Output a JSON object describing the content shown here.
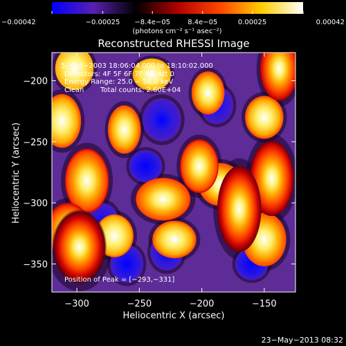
{
  "chart_data": {
    "type": "heatmap",
    "title": "Reconstructed RHESSI Image",
    "xlabel": "Heliocentric X (arcsec)",
    "ylabel": "Heliocentric Y (arcsec)",
    "xlim": [
      -320,
      -125
    ],
    "ylim": [
      -373,
      -177
    ],
    "x_ticks": [
      -300,
      -250,
      -200,
      -150
    ],
    "x_tick_labels": [
      "−300",
      "−250",
      "−200",
      "−150"
    ],
    "y_ticks": [
      -200,
      -250,
      -300,
      -350
    ],
    "y_tick_labels": [
      "−200",
      "−250",
      "−300",
      "−350"
    ],
    "colorbar": {
      "range": [
        -0.00042,
        0.00042
      ],
      "ticks": [
        -0.00042,
        -0.00025,
        -8.4e-05,
        8.4e-05,
        0.00025,
        0.00042
      ],
      "tick_labels": [
        "−0.00042",
        "−0.00025",
        "−8.4e−05",
        "8.4e−05",
        "0.00025",
        "0.00042"
      ],
      "unit_label": "(photons cm⁻² s⁻¹ asec⁻²)",
      "colormap": [
        "#0000ff",
        "#5a1fb0",
        "#000000",
        "#b00000",
        "#ff4400",
        "#ffcc00",
        "#ffffff"
      ]
    },
    "annotations": {
      "time_range": "5−Oct−2003 18:06:04.000 to 18:10:02.000",
      "detectors": "Detectors: 4F 5F 6F 7F 8F, Att 0",
      "energy": "Energy Range: 25.0 − 50.0 keV",
      "method": "Clean",
      "counts": "Total counts: 2.60E+04",
      "peak": "Position of Peak = [−293,−331]"
    },
    "peak": {
      "x": -293,
      "y": -331
    },
    "sources": [
      {
        "x": -298,
        "y": -336,
        "v": 0.00042,
        "sx": 10,
        "sy": 14
      },
      {
        "x": -307,
        "y": -322,
        "v": 0.0003,
        "sx": 8,
        "sy": 10
      },
      {
        "x": -170,
        "y": -305,
        "v": 0.00038,
        "sx": 8,
        "sy": 16
      },
      {
        "x": -144,
        "y": -280,
        "v": 0.00036,
        "sx": 8,
        "sy": 14
      },
      {
        "x": -138,
        "y": -190,
        "v": 0.00034,
        "sx": 7,
        "sy": 12
      },
      {
        "x": -292,
        "y": -282,
        "v": 0.00028,
        "sx": 8,
        "sy": 12
      },
      {
        "x": -231,
        "y": -297,
        "v": 0.00026,
        "sx": 10,
        "sy": 8
      },
      {
        "x": -202,
        "y": -270,
        "v": 0.00028,
        "sx": 7,
        "sy": 10
      },
      {
        "x": -150,
        "y": -330,
        "v": 0.00024,
        "sx": 8,
        "sy": 10
      },
      {
        "x": -185,
        "y": -285,
        "v": 0.00024,
        "sx": 8,
        "sy": 8
      },
      {
        "x": -312,
        "y": -233,
        "v": 0.0002,
        "sx": 7,
        "sy": 10
      },
      {
        "x": -262,
        "y": -240,
        "v": 0.00022,
        "sx": 6,
        "sy": 9
      },
      {
        "x": -195,
        "y": -210,
        "v": 0.00022,
        "sx": 6,
        "sy": 8
      },
      {
        "x": -150,
        "y": -230,
        "v": 0.0002,
        "sx": 7,
        "sy": 8
      },
      {
        "x": -222,
        "y": -330,
        "v": 0.0002,
        "sx": 8,
        "sy": 7
      },
      {
        "x": -270,
        "y": -327,
        "v": 0.00018,
        "sx": 7,
        "sy": 8
      },
      {
        "x": -240,
        "y": -195,
        "v": 0.00016,
        "sx": 7,
        "sy": 6
      },
      {
        "x": -302,
        "y": -190,
        "v": 0.00016,
        "sx": 7,
        "sy": 8
      },
      {
        "x": -232,
        "y": -232,
        "v": -0.00026,
        "sx": 7,
        "sy": 8
      },
      {
        "x": -188,
        "y": -220,
        "v": -0.00026,
        "sx": 6,
        "sy": 7
      },
      {
        "x": -279,
        "y": -318,
        "v": -0.00022,
        "sx": 6,
        "sy": 8
      },
      {
        "x": -228,
        "y": -340,
        "v": -0.0002,
        "sx": 6,
        "sy": 7
      },
      {
        "x": -260,
        "y": -350,
        "v": -0.00018,
        "sx": 6,
        "sy": 7
      },
      {
        "x": -160,
        "y": -350,
        "v": -0.00016,
        "sx": 6,
        "sy": 6
      },
      {
        "x": -245,
        "y": -270,
        "v": -0.00016,
        "sx": 6,
        "sy": 6
      }
    ]
  },
  "footer": {
    "timestamp": "23−May−2013 08:32"
  }
}
